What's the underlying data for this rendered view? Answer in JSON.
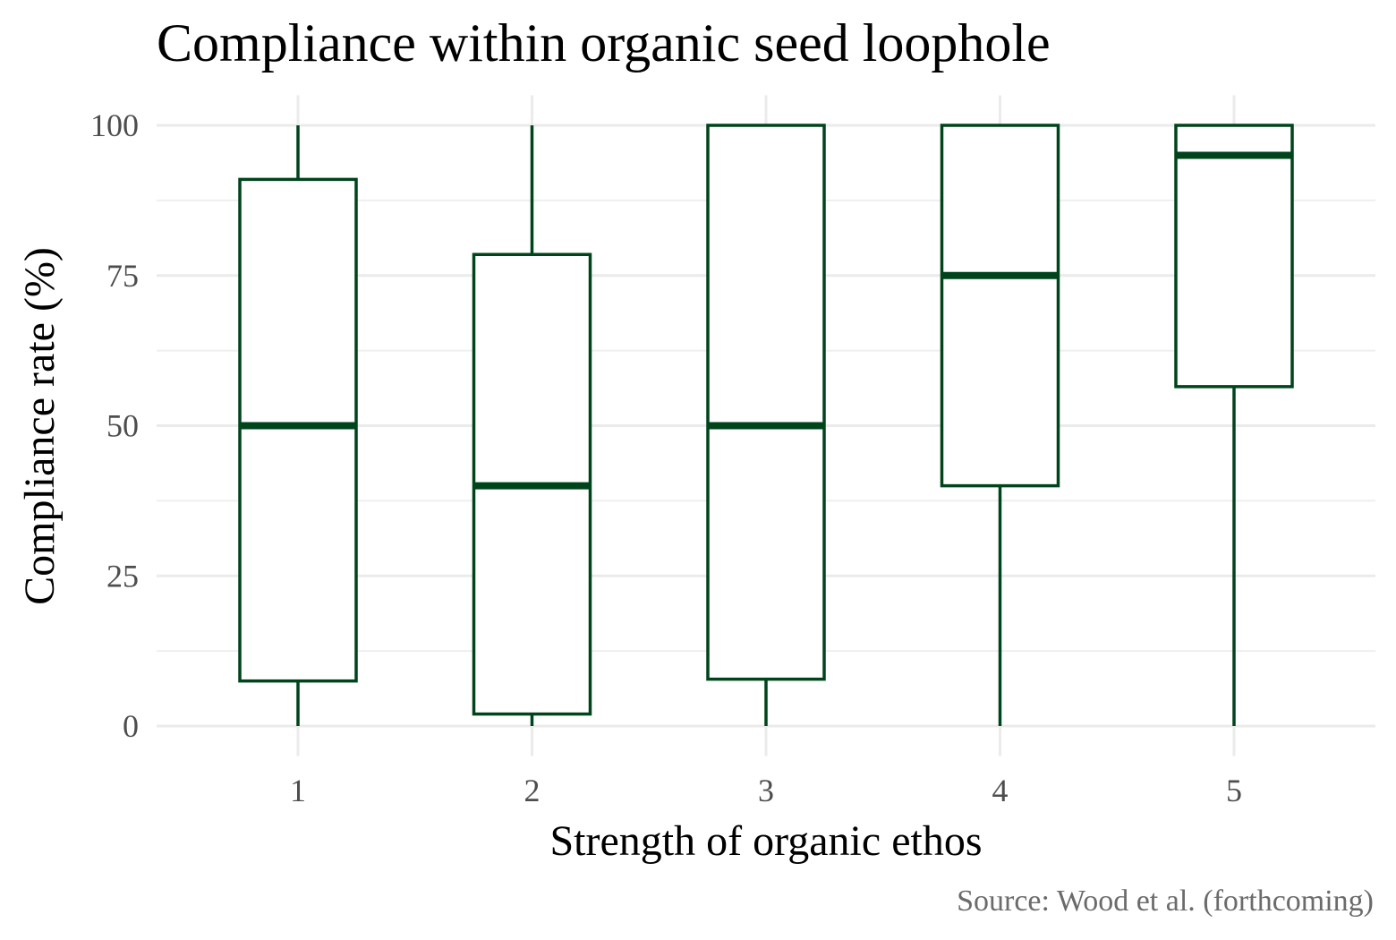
{
  "chart_data": {
    "type": "boxplot",
    "title": "Compliance within organic seed loophole",
    "xlabel": "Strength of organic ethos",
    "ylabel": "Compliance rate (%)",
    "caption": "Source: Wood et al. (forthcoming)",
    "categories": [
      "1",
      "2",
      "3",
      "4",
      "5"
    ],
    "y_ticks": [
      0,
      25,
      50,
      75,
      100
    ],
    "ylim": [
      -5,
      105
    ],
    "grid": true,
    "color": "#00441b",
    "boxes": [
      {
        "category": "1",
        "min": 0,
        "q1": 7.5,
        "median": 50,
        "q3": 91,
        "max": 100
      },
      {
        "category": "2",
        "min": 0,
        "q1": 2,
        "median": 40,
        "q3": 78.5,
        "max": 100
      },
      {
        "category": "3",
        "min": 0,
        "q1": 7.8,
        "median": 50,
        "q3": 100,
        "max": 100
      },
      {
        "category": "4",
        "min": 0,
        "q1": 40,
        "median": 75,
        "q3": 100,
        "max": 100
      },
      {
        "category": "5",
        "min": 0,
        "q1": 56.5,
        "median": 95,
        "q3": 100,
        "max": 100
      }
    ]
  }
}
